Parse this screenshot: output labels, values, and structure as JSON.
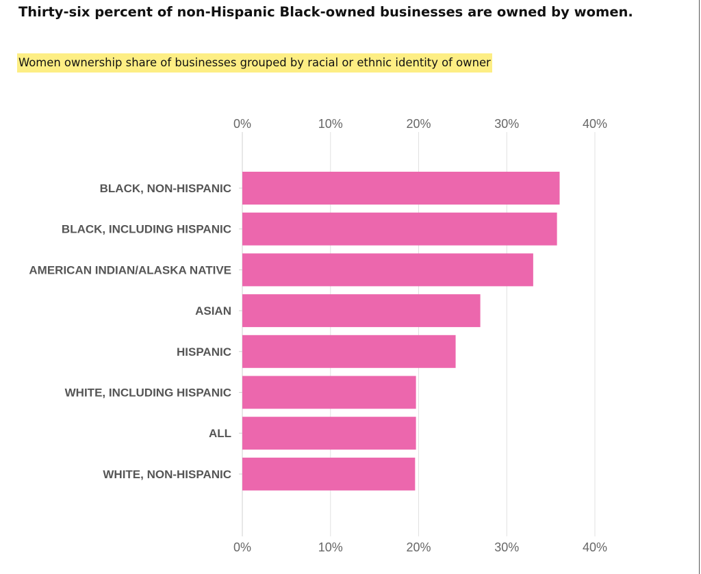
{
  "header": {
    "title": "Thirty-six percent of non-Hispanic Black-owned businesses are owned by women.",
    "subtitle": "Women ownership share of businesses grouped by racial or ethnic identity of owner"
  },
  "chart_data": {
    "type": "bar",
    "orientation": "horizontal",
    "categories": [
      "BLACK, NON-HISPANIC",
      "BLACK, INCLUDING HISPANIC",
      "AMERICAN INDIAN/ALASKA NATIVE",
      "ASIAN",
      "HISPANIC",
      "WHITE, INCLUDING HISPANIC",
      "ALL",
      "WHITE, NON-HISPANIC"
    ],
    "values": [
      36.0,
      35.7,
      33.0,
      27.0,
      24.2,
      19.7,
      19.7,
      19.6
    ],
    "xlim": [
      0,
      40
    ],
    "ticks": [
      0,
      10,
      20,
      30,
      40
    ],
    "tick_labels": [
      "0%",
      "10%",
      "20%",
      "30%",
      "40%"
    ],
    "axis_position": "top and bottom",
    "grid": true,
    "bar_color": "#ec67ad"
  }
}
